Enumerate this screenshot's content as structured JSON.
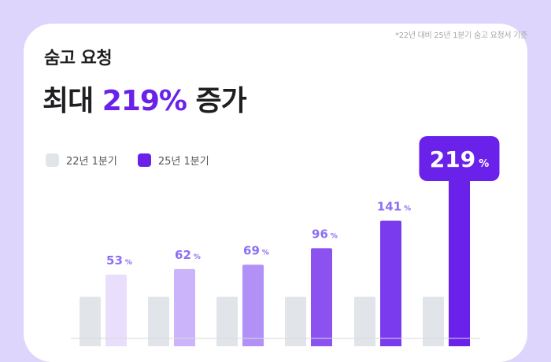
{
  "footnote": "*22년 대비 25년 1분기 숨고 요청서 기준",
  "title": {
    "line1": "숨고 요청",
    "line2_prefix": "최대 ",
    "line2_highlight": "219%",
    "line2_suffix": " 증가"
  },
  "legend": [
    {
      "name": "22년 1분기",
      "color": "#e1e5ea"
    },
    {
      "name": "25년 1분기",
      "color": "#6a22ea"
    }
  ],
  "colors": {
    "background": "#ddd5fb",
    "baseline_bar": "#e1e5ea",
    "bar_shades": [
      "#e9dffd",
      "#cbb4fa",
      "#b291f6",
      "#8b52f0",
      "#7a3bef",
      "#6a22ea"
    ],
    "label_color": "#8d6ff5",
    "callout_bg": "#6a22ea"
  },
  "chart_data": {
    "type": "bar",
    "series": [
      {
        "name": "22년 1분기",
        "values": [
          null,
          null,
          null,
          null,
          null,
          null
        ]
      },
      {
        "name": "25년 1분기",
        "values": [
          53,
          62,
          69,
          96,
          141,
          219
        ]
      }
    ],
    "value_unit": "%",
    "highlight": {
      "value": "219",
      "unit": "%"
    }
  }
}
